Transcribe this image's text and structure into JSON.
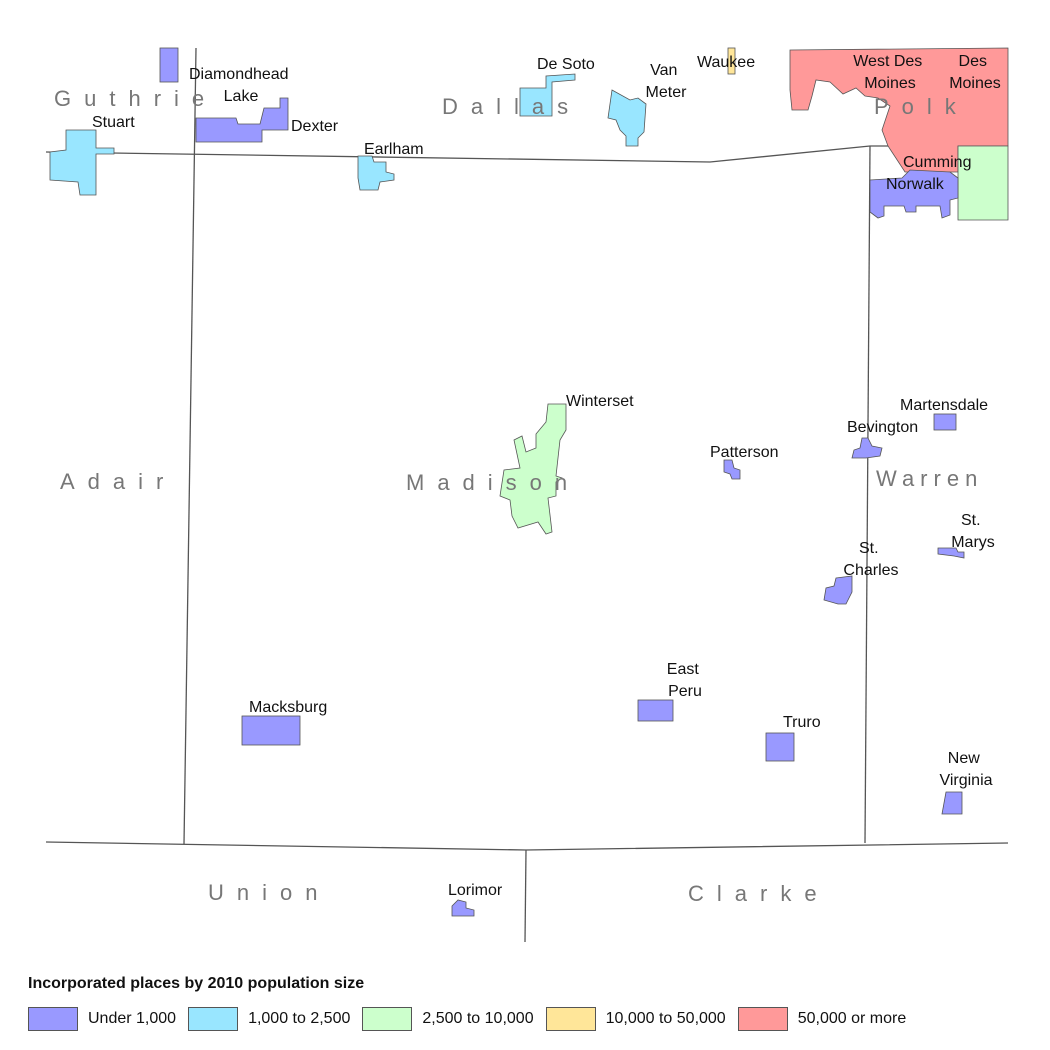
{
  "legend": {
    "title": "Incorporated places by 2010 population size",
    "items": [
      {
        "label": "Under 1,000",
        "color": "#9999ff"
      },
      {
        "label": "1,000 to 2,500",
        "color": "#99e6ff"
      },
      {
        "label": "2,500 to 10,000",
        "color": "#ccffcc"
      },
      {
        "label": "10,000 to 50,000",
        "color": "#ffe699"
      },
      {
        "label": "50,000 or more",
        "color": "#ff9999"
      }
    ]
  },
  "counties": {
    "guthrie": "Guthrie",
    "dallas": "Dallas",
    "polk": "Polk",
    "adair": "Adair",
    "madison": "Madison",
    "warren": "Warren",
    "union": "Union",
    "clarke": "Clarke"
  },
  "places": {
    "diamondhead_lake": [
      "Diamondhead",
      "Lake"
    ],
    "stuart": "Stuart",
    "dexter": "Dexter",
    "earlham": "Earlham",
    "de_soto": "De Soto",
    "van_meter": [
      "Van",
      "Meter"
    ],
    "waukee": "Waukee",
    "west_des_moines": [
      "West Des",
      "Moines"
    ],
    "des_moines": [
      "Des",
      "Moines"
    ],
    "cumming": "Cumming",
    "norwalk": "Norwalk",
    "winterset": "Winterset",
    "patterson": "Patterson",
    "martensdale": "Martensdale",
    "bevington": "Bevington",
    "st_marys": [
      "St.",
      "Marys"
    ],
    "st_charles": [
      "St.",
      "Charles"
    ],
    "east_peru": [
      "East",
      "Peru"
    ],
    "macksburg": "Macksburg",
    "truro": "Truro",
    "new_virginia": [
      "New",
      "Virginia"
    ],
    "lorimor": "Lorimor"
  }
}
